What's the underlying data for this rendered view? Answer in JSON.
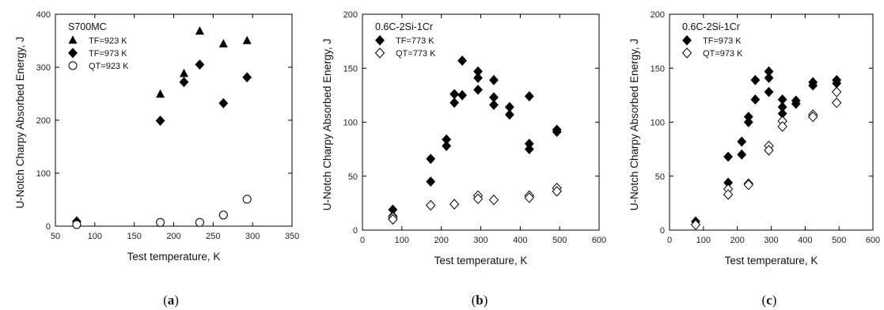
{
  "chart_data": [
    {
      "type": "scatter",
      "caption": "a",
      "title": "S700MC",
      "xlabel": "Test temperature, K",
      "ylabel": "U-Notch Charpy Absorbed Energy, J",
      "xlim": [
        50,
        350
      ],
      "ylim": [
        0,
        400
      ],
      "xticks": [
        50,
        100,
        150,
        200,
        250,
        300,
        350
      ],
      "yticks": [
        0,
        100,
        200,
        300,
        400
      ],
      "legend_position": "top-left",
      "series": [
        {
          "name": "TF=923 K",
          "marker": "triangle",
          "fill": "#000000",
          "points": [
            [
              77,
              10
            ],
            [
              183,
              249
            ],
            [
              213,
              288
            ],
            [
              233,
              368
            ],
            [
              263,
              344
            ],
            [
              293,
              350
            ]
          ]
        },
        {
          "name": "TF=973 K",
          "marker": "diamond",
          "fill": "#000000",
          "points": [
            [
              77,
              9
            ],
            [
              183,
              199
            ],
            [
              213,
              272
            ],
            [
              233,
              305
            ],
            [
              263,
              232
            ],
            [
              293,
              281
            ]
          ]
        },
        {
          "name": "QT=923 K",
          "marker": "circle",
          "fill": "none",
          "points": [
            [
              77,
              3
            ],
            [
              183,
              7
            ],
            [
              233,
              7
            ],
            [
              263,
              21
            ],
            [
              293,
              51
            ]
          ]
        }
      ]
    },
    {
      "type": "scatter",
      "caption": "b",
      "title": "0.6C-2Si-1Cr",
      "xlabel": "Test temperature, K",
      "ylabel": "U-Notch Charpy Absorbed Energy, J",
      "xlim": [
        0,
        600
      ],
      "ylim": [
        0,
        200
      ],
      "xticks": [
        0,
        100,
        200,
        300,
        400,
        500,
        600
      ],
      "yticks": [
        0,
        50,
        100,
        150,
        200
      ],
      "legend_position": "top-left",
      "series": [
        {
          "name": "TF=773 K",
          "marker": "diamond",
          "fill": "#000000",
          "points": [
            [
              77,
              19
            ],
            [
              77,
              13
            ],
            [
              173,
              66
            ],
            [
              173,
              45
            ],
            [
              213,
              84
            ],
            [
              213,
              78
            ],
            [
              233,
              126
            ],
            [
              233,
              118
            ],
            [
              253,
              157
            ],
            [
              253,
              125
            ],
            [
              293,
              147
            ],
            [
              293,
              141
            ],
            [
              293,
              130
            ],
            [
              333,
              139
            ],
            [
              333,
              123
            ],
            [
              333,
              116
            ],
            [
              373,
              114
            ],
            [
              373,
              107
            ],
            [
              423,
              124
            ],
            [
              423,
              80
            ],
            [
              423,
              75
            ],
            [
              493,
              93
            ],
            [
              493,
              91
            ]
          ]
        },
        {
          "name": "QT=773 K",
          "marker": "diamond",
          "fill": "none",
          "points": [
            [
              77,
              12
            ],
            [
              77,
              10
            ],
            [
              173,
              23
            ],
            [
              233,
              24
            ],
            [
              293,
              32
            ],
            [
              293,
              29
            ],
            [
              333,
              28
            ],
            [
              423,
              32
            ],
            [
              423,
              30
            ],
            [
              493,
              39
            ],
            [
              493,
              36
            ]
          ]
        }
      ]
    },
    {
      "type": "scatter",
      "caption": "c",
      "title": "0.6C-2Si-1Cr",
      "xlabel": "Test temperature, K",
      "ylabel": "U-Notch Charpy Absorbed Energy, J",
      "xlim": [
        0,
        600
      ],
      "ylim": [
        0,
        200
      ],
      "xticks": [
        0,
        100,
        200,
        300,
        400,
        500,
        600
      ],
      "yticks": [
        0,
        50,
        100,
        150,
        200
      ],
      "legend_position": "top-left",
      "series": [
        {
          "name": "TF=973 K",
          "marker": "diamond",
          "fill": "#000000",
          "points": [
            [
              77,
              8
            ],
            [
              173,
              68
            ],
            [
              173,
              44
            ],
            [
              213,
              82
            ],
            [
              213,
              70
            ],
            [
              233,
              105
            ],
            [
              233,
              100
            ],
            [
              253,
              139
            ],
            [
              253,
              121
            ],
            [
              293,
              147
            ],
            [
              293,
              141
            ],
            [
              293,
              128
            ],
            [
              333,
              121
            ],
            [
              333,
              114
            ],
            [
              333,
              108
            ],
            [
              373,
              120
            ],
            [
              373,
              117
            ],
            [
              423,
              137
            ],
            [
              423,
              134
            ],
            [
              423,
              105
            ],
            [
              493,
              139
            ],
            [
              493,
              136
            ]
          ]
        },
        {
          "name": "QT=973 K",
          "marker": "diamond",
          "fill": "none",
          "points": [
            [
              77,
              5
            ],
            [
              173,
              38
            ],
            [
              173,
              33
            ],
            [
              233,
              43
            ],
            [
              233,
              42
            ],
            [
              293,
              78
            ],
            [
              293,
              74
            ],
            [
              333,
              101
            ],
            [
              333,
              96
            ],
            [
              423,
              107
            ],
            [
              423,
              105
            ],
            [
              493,
              128
            ],
            [
              493,
              118
            ]
          ]
        }
      ]
    }
  ]
}
